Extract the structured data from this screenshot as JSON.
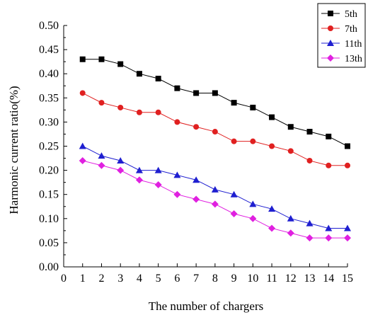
{
  "chart_data": {
    "type": "line",
    "title": "",
    "xlabel": "The number of chargers",
    "ylabel": "Harmonic current ratio(%)",
    "x": [
      1,
      2,
      3,
      4,
      5,
      6,
      7,
      8,
      9,
      10,
      11,
      12,
      13,
      14,
      15
    ],
    "xlim": [
      0,
      15
    ],
    "ylim": [
      0.0,
      0.5
    ],
    "x_ticks": [
      "0",
      "1",
      "2",
      "3",
      "4",
      "5",
      "6",
      "7",
      "8",
      "9",
      "10",
      "11",
      "12",
      "13",
      "14",
      "15"
    ],
    "y_ticks": [
      "0.00",
      "0.05",
      "0.10",
      "0.15",
      "0.20",
      "0.25",
      "0.30",
      "0.35",
      "0.40",
      "0.45",
      "0.50"
    ],
    "grid": false,
    "legend_position": "top-right",
    "series": [
      {
        "name": "5th",
        "color": "#000000",
        "marker": "square",
        "values": [
          0.43,
          0.43,
          0.42,
          0.4,
          0.39,
          0.37,
          0.36,
          0.36,
          0.34,
          0.33,
          0.31,
          0.29,
          0.28,
          0.27,
          0.25
        ]
      },
      {
        "name": "7th",
        "color": "#e02020",
        "marker": "circle",
        "values": [
          0.36,
          0.34,
          0.33,
          0.32,
          0.32,
          0.3,
          0.29,
          0.28,
          0.26,
          0.26,
          0.25,
          0.24,
          0.22,
          0.21,
          0.21
        ]
      },
      {
        "name": "11th",
        "color": "#1f1fd0",
        "marker": "triangle",
        "values": [
          0.25,
          0.23,
          0.22,
          0.2,
          0.2,
          0.19,
          0.18,
          0.16,
          0.15,
          0.13,
          0.12,
          0.1,
          0.09,
          0.08,
          0.08
        ]
      },
      {
        "name": "13th",
        "color": "#e020e0",
        "marker": "diamond",
        "values": [
          0.22,
          0.21,
          0.2,
          0.18,
          0.17,
          0.15,
          0.14,
          0.13,
          0.11,
          0.1,
          0.08,
          0.07,
          0.06,
          0.06,
          0.06
        ]
      }
    ]
  }
}
